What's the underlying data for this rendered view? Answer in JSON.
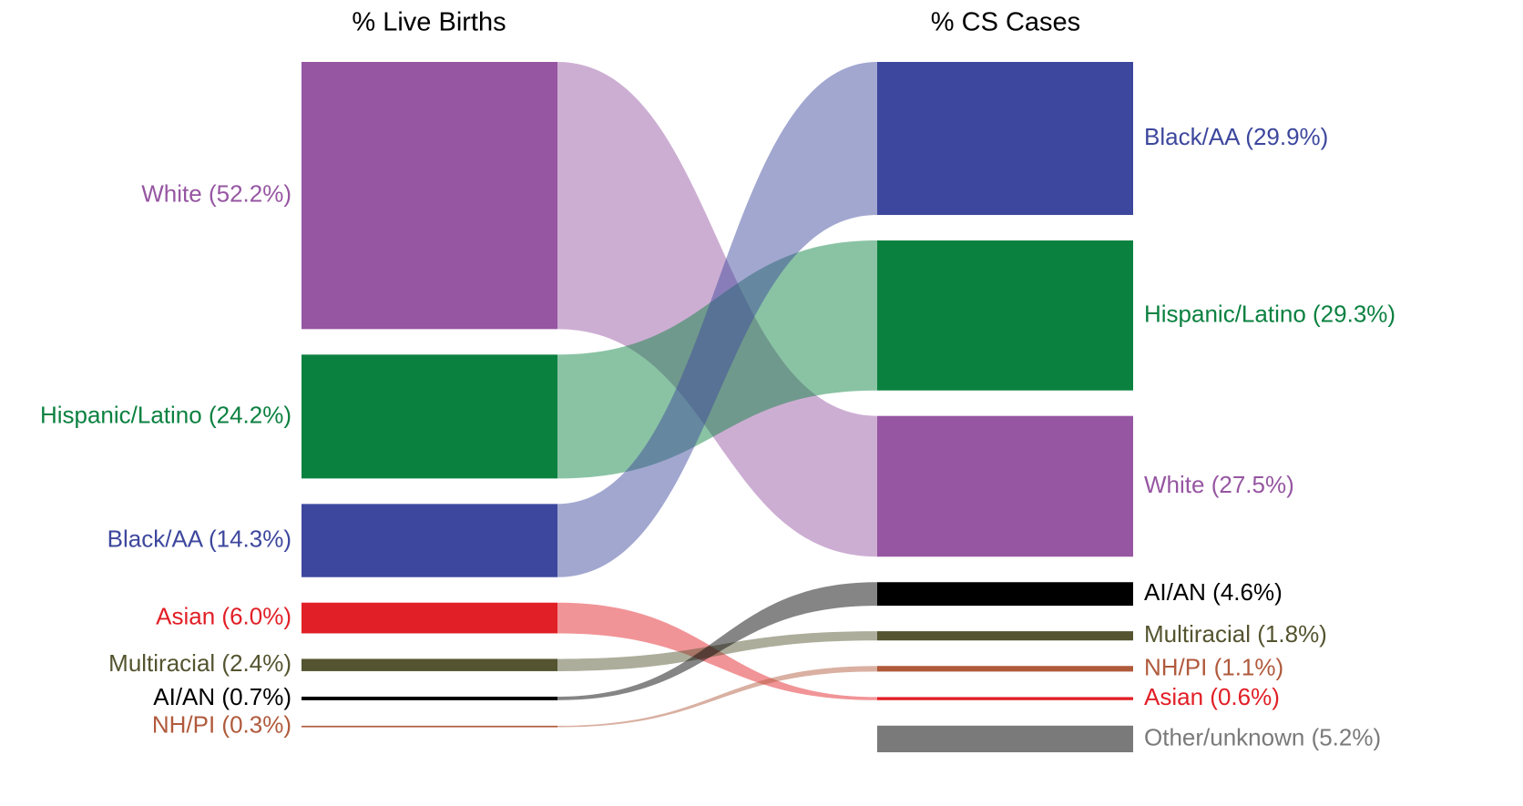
{
  "chart_data": {
    "type": "sankey",
    "left": {
      "title": "% Live Births",
      "nodes": [
        {
          "name": "White",
          "value": 52.2,
          "value_label": "(52.2%)",
          "color": "#9656a2"
        },
        {
          "name": "Hispanic/Latino",
          "value": 24.2,
          "value_label": "(24.2%)",
          "color": "#0b8140"
        },
        {
          "name": "Black/AA",
          "value": 14.3,
          "value_label": "(14.3%)",
          "color": "#3d479d"
        },
        {
          "name": "Asian",
          "value": 6.0,
          "value_label": "(6.0%)",
          "color": "#e11f26"
        },
        {
          "name": "Multiracial",
          "value": 2.4,
          "value_label": "(2.4%)",
          "color": "#545430"
        },
        {
          "name": "AI/AN",
          "value": 0.7,
          "value_label": "(0.7%)",
          "color": "#000000"
        },
        {
          "name": "NH/PI",
          "value": 0.3,
          "value_label": "(0.3%)",
          "color": "#b05a3c"
        }
      ]
    },
    "right": {
      "title": "% CS Cases",
      "nodes": [
        {
          "name": "Black/AA",
          "value": 29.9,
          "value_label": "(29.9%)",
          "color": "#3d479d"
        },
        {
          "name": "Hispanic/Latino",
          "value": 29.3,
          "value_label": "(29.3%)",
          "color": "#0b8140"
        },
        {
          "name": "White",
          "value": 27.5,
          "value_label": "(27.5%)",
          "color": "#9656a2"
        },
        {
          "name": "AI/AN",
          "value": 4.6,
          "value_label": "(4.6%)",
          "color": "#000000"
        },
        {
          "name": "Multiracial",
          "value": 1.8,
          "value_label": "(1.8%)",
          "color": "#545430"
        },
        {
          "name": "NH/PI",
          "value": 1.1,
          "value_label": "(1.1%)",
          "color": "#b05a3c"
        },
        {
          "name": "Asian",
          "value": 0.6,
          "value_label": "(0.6%)",
          "color": "#e11f26"
        },
        {
          "name": "Other/unknown",
          "value": 5.2,
          "value_label": "(5.2%)",
          "color": "#7a7a7a"
        }
      ]
    }
  }
}
